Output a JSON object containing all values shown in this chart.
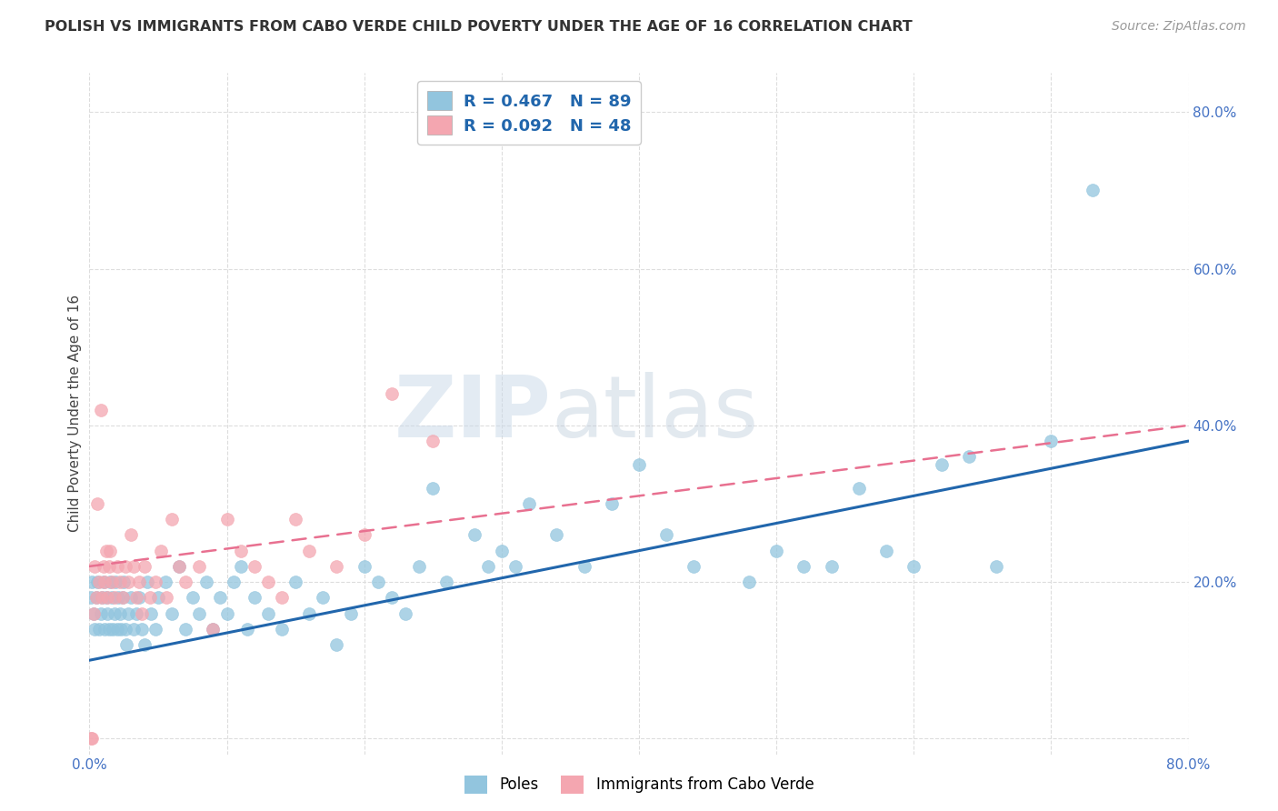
{
  "title": "POLISH VS IMMIGRANTS FROM CABO VERDE CHILD POVERTY UNDER THE AGE OF 16 CORRELATION CHART",
  "source": "Source: ZipAtlas.com",
  "ylabel": "Child Poverty Under the Age of 16",
  "xlim": [
    0.0,
    0.8
  ],
  "ylim": [
    -0.02,
    0.85
  ],
  "x_ticks": [
    0.0,
    0.1,
    0.2,
    0.3,
    0.4,
    0.5,
    0.6,
    0.7,
    0.8
  ],
  "y_ticks": [
    0.0,
    0.2,
    0.4,
    0.6,
    0.8
  ],
  "x_tick_labels": [
    "0.0%",
    "",
    "",
    "",
    "",
    "",
    "",
    "",
    "80.0%"
  ],
  "y_tick_labels_right": [
    "",
    "20.0%",
    "40.0%",
    "60.0%",
    "80.0%"
  ],
  "poles_R": 0.467,
  "poles_N": 89,
  "cabo_R": 0.092,
  "cabo_N": 48,
  "poles_color": "#92C5DE",
  "cabo_color": "#F4A6B0",
  "poles_line_color": "#2166AC",
  "cabo_line_color": "#E87090",
  "legend_text_color": "#2166AC",
  "watermark_left": "ZIP",
  "watermark_right": "atlas",
  "poles_x": [
    0.001,
    0.002,
    0.003,
    0.004,
    0.005,
    0.006,
    0.007,
    0.008,
    0.009,
    0.01,
    0.011,
    0.012,
    0.013,
    0.014,
    0.015,
    0.016,
    0.017,
    0.018,
    0.019,
    0.02,
    0.021,
    0.022,
    0.023,
    0.024,
    0.025,
    0.026,
    0.027,
    0.028,
    0.03,
    0.032,
    0.034,
    0.036,
    0.038,
    0.04,
    0.042,
    0.045,
    0.048,
    0.05,
    0.055,
    0.06,
    0.065,
    0.07,
    0.075,
    0.08,
    0.085,
    0.09,
    0.095,
    0.1,
    0.105,
    0.11,
    0.115,
    0.12,
    0.13,
    0.14,
    0.15,
    0.16,
    0.17,
    0.18,
    0.19,
    0.2,
    0.21,
    0.22,
    0.23,
    0.24,
    0.25,
    0.26,
    0.28,
    0.29,
    0.3,
    0.31,
    0.32,
    0.34,
    0.36,
    0.38,
    0.4,
    0.42,
    0.44,
    0.48,
    0.5,
    0.52,
    0.54,
    0.56,
    0.58,
    0.6,
    0.62,
    0.64,
    0.66,
    0.7,
    0.73
  ],
  "poles_y": [
    0.18,
    0.2,
    0.16,
    0.14,
    0.18,
    0.2,
    0.14,
    0.16,
    0.18,
    0.2,
    0.14,
    0.18,
    0.16,
    0.14,
    0.2,
    0.18,
    0.14,
    0.16,
    0.2,
    0.14,
    0.18,
    0.16,
    0.14,
    0.18,
    0.2,
    0.14,
    0.12,
    0.16,
    0.18,
    0.14,
    0.16,
    0.18,
    0.14,
    0.12,
    0.2,
    0.16,
    0.14,
    0.18,
    0.2,
    0.16,
    0.22,
    0.14,
    0.18,
    0.16,
    0.2,
    0.14,
    0.18,
    0.16,
    0.2,
    0.22,
    0.14,
    0.18,
    0.16,
    0.14,
    0.2,
    0.16,
    0.18,
    0.12,
    0.16,
    0.22,
    0.2,
    0.18,
    0.16,
    0.22,
    0.32,
    0.2,
    0.26,
    0.22,
    0.24,
    0.22,
    0.3,
    0.26,
    0.22,
    0.3,
    0.35,
    0.26,
    0.22,
    0.2,
    0.24,
    0.22,
    0.22,
    0.32,
    0.24,
    0.22,
    0.35,
    0.36,
    0.22,
    0.38,
    0.7
  ],
  "cabo_x": [
    0.001,
    0.002,
    0.003,
    0.004,
    0.005,
    0.006,
    0.007,
    0.008,
    0.009,
    0.01,
    0.011,
    0.012,
    0.013,
    0.014,
    0.015,
    0.016,
    0.018,
    0.02,
    0.022,
    0.024,
    0.026,
    0.028,
    0.03,
    0.032,
    0.034,
    0.036,
    0.038,
    0.04,
    0.044,
    0.048,
    0.052,
    0.056,
    0.06,
    0.065,
    0.07,
    0.08,
    0.09,
    0.1,
    0.11,
    0.12,
    0.13,
    0.14,
    0.15,
    0.16,
    0.18,
    0.2,
    0.22,
    0.25
  ],
  "cabo_y": [
    0.0,
    0.0,
    0.16,
    0.22,
    0.18,
    0.3,
    0.2,
    0.42,
    0.18,
    0.22,
    0.2,
    0.24,
    0.18,
    0.22,
    0.24,
    0.2,
    0.18,
    0.22,
    0.2,
    0.18,
    0.22,
    0.2,
    0.26,
    0.22,
    0.18,
    0.2,
    0.16,
    0.22,
    0.18,
    0.2,
    0.24,
    0.18,
    0.28,
    0.22,
    0.2,
    0.22,
    0.14,
    0.28,
    0.24,
    0.22,
    0.2,
    0.18,
    0.28,
    0.24,
    0.22,
    0.26,
    0.44,
    0.38
  ],
  "poles_line_x": [
    0.0,
    0.8
  ],
  "poles_line_y": [
    0.1,
    0.38
  ],
  "cabo_line_x": [
    0.0,
    0.8
  ],
  "cabo_line_y": [
    0.22,
    0.4
  ],
  "background_color": "#FFFFFF",
  "grid_color": "#DDDDDD"
}
